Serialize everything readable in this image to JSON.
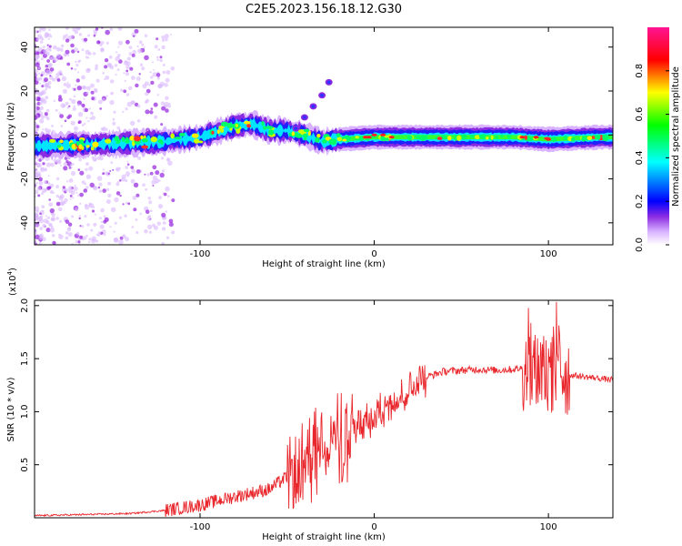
{
  "figure": {
    "title": "C2E5.2023.156.18.12.G30"
  },
  "chart_data": [
    {
      "type": "heatmap",
      "title": "C2E5.2023.156.18.12.G30",
      "xlabel": "Height of straight line (km)",
      "ylabel": "Frequency (Hz)",
      "xlim": [
        -195,
        137
      ],
      "ylim": [
        -50,
        49
      ],
      "x_ticks": [
        -100,
        0,
        100
      ],
      "y_ticks": [
        -40,
        -20,
        0,
        20,
        40
      ],
      "colorbar": {
        "label": "Normalized spectral amplitude",
        "range": [
          0.0,
          1.0
        ],
        "ticks": [
          0.0,
          0.2,
          0.4,
          0.6,
          0.8
        ],
        "colors": [
          "#ffffff",
          "#d9b3ff",
          "#8a2be2",
          "#0000ff",
          "#00ffff",
          "#00ff00",
          "#ffff00",
          "#ff0000",
          "#ff1493"
        ]
      },
      "ridge": {
        "description_points_x": [
          -190,
          -150,
          -120,
          -100,
          -80,
          -70,
          -60,
          -50,
          -40,
          -30,
          -20,
          0,
          20,
          50,
          80,
          100,
          130
        ],
        "description_points_y": [
          -5,
          -4,
          -3,
          -1,
          4,
          5,
          2,
          2,
          0,
          -3,
          -2,
          -1,
          -1,
          -1,
          -1,
          -2,
          -1
        ]
      },
      "secondary_branch": {
        "x": [
          -45,
          -40,
          -35,
          -30,
          -26
        ],
        "y": [
          3,
          8,
          13,
          18,
          24
        ]
      }
    },
    {
      "type": "line",
      "xlabel": "Height of straight line (km)",
      "ylabel": "SNR (10 * v/v)",
      "y_scale_label": "(x10^4)",
      "y_scale_base": "(x10",
      "y_scale_exp": "4",
      "xlim": [
        -195,
        137
      ],
      "ylim": [
        0,
        2.05
      ],
      "x_ticks": [
        -100,
        0,
        100
      ],
      "y_ticks": [
        0.5,
        1.0,
        1.5,
        2.0
      ],
      "series": [
        {
          "name": "SNR",
          "color": "#e8262b",
          "envelope_x": [
            -195,
            -140,
            -120,
            -100,
            -80,
            -60,
            -45,
            -35,
            -25,
            -15,
            -5,
            10,
            25,
            40,
            60,
            70,
            80,
            90,
            95,
            100,
            105,
            110,
            120,
            137
          ],
          "envelope_y": [
            0.02,
            0.04,
            0.07,
            0.12,
            0.2,
            0.27,
            0.45,
            0.7,
            0.8,
            0.85,
            0.93,
            1.12,
            1.3,
            1.38,
            1.4,
            1.39,
            1.4,
            1.42,
            1.37,
            1.32,
            1.45,
            1.35,
            1.33,
            1.3
          ]
        }
      ]
    }
  ]
}
